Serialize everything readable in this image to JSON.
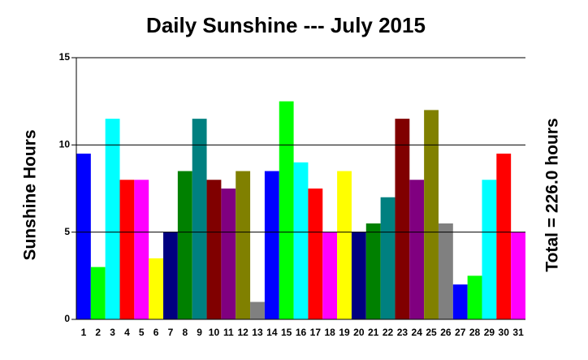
{
  "chart_data": {
    "type": "bar",
    "title": "Daily Sunshine --- July 2015",
    "y_label": "Sunshine Hours",
    "annotation": "Total = 226.0 hours",
    "categories": [
      "1",
      "2",
      "3",
      "4",
      "5",
      "6",
      "7",
      "8",
      "9",
      "10",
      "11",
      "12",
      "13",
      "14",
      "15",
      "16",
      "17",
      "18",
      "19",
      "20",
      "21",
      "22",
      "23",
      "24",
      "25",
      "26",
      "27",
      "28",
      "29",
      "30",
      "31"
    ],
    "values": [
      9.5,
      3,
      11.5,
      8,
      8,
      3.5,
      5,
      8.5,
      11.5,
      8,
      7.5,
      8.5,
      1,
      8.5,
      12.5,
      9,
      7.5,
      5,
      8.5,
      5,
      5.5,
      7,
      11.5,
      8,
      12,
      5.5,
      2,
      2.5,
      8,
      9.5,
      5
    ],
    "colors": [
      "#0000ff",
      "#00ff00",
      "#00ffff",
      "#ff0000",
      "#ff00ff",
      "#ffff00",
      "#000080",
      "#008000",
      "#008080",
      "#800000",
      "#800080",
      "#808000",
      "#808080",
      "#0000ff",
      "#00ff00",
      "#00ffff",
      "#ff0000",
      "#ff00ff",
      "#ffff00",
      "#000080",
      "#008000",
      "#008080",
      "#800000",
      "#800080",
      "#808000",
      "#808080",
      "#0000ff",
      "#00ff00",
      "#00ffff",
      "#ff0000",
      "#ff00ff"
    ],
    "ylim": [
      0,
      15
    ],
    "yticks": [
      0,
      5,
      10,
      15
    ],
    "grid": true
  }
}
